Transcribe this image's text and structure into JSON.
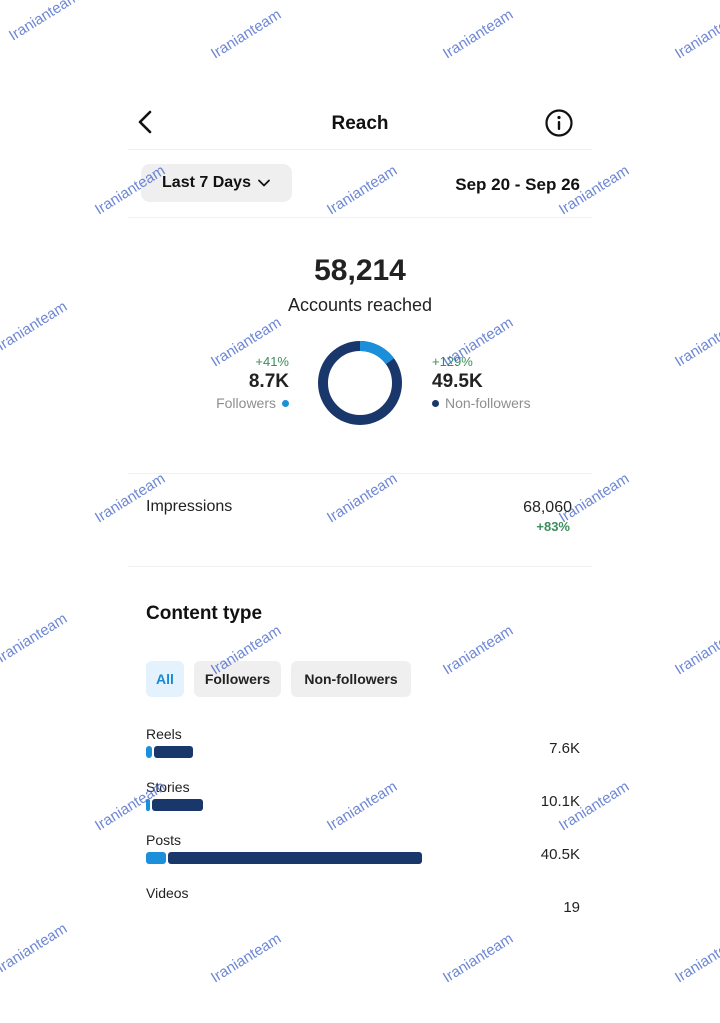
{
  "header": {
    "title": "Reach",
    "back_icon": "chevron-left-icon",
    "info_icon": "info-circle-icon"
  },
  "filters": {
    "range_label": "Last 7 Days",
    "date_range": "Sep 20 - Sep 26"
  },
  "reach": {
    "total": "58,214",
    "label": "Accounts reached",
    "followers": {
      "change": "+41%",
      "value": "8.7K",
      "label": "Followers",
      "fraction": 0.15,
      "color": "#1b8fd9"
    },
    "non_followers": {
      "change": "+129%",
      "value": "49.5K",
      "label": "Non-followers",
      "fraction": 0.85,
      "color": "#1a376b"
    }
  },
  "impressions": {
    "label": "Impressions",
    "value": "68,060",
    "change": "+83%"
  },
  "content_type": {
    "title": "Content type",
    "chips": [
      "All",
      "Followers",
      "Non-followers"
    ],
    "rows": [
      {
        "label": "Reels",
        "value": "7.6K",
        "followers_fraction": 0.02,
        "non_followers_fraction": 0.14
      },
      {
        "label": "Stories",
        "value": "10.1K",
        "followers_fraction": 0.015,
        "non_followers_fraction": 0.18
      },
      {
        "label": "Posts",
        "value": "40.5K",
        "followers_fraction": 0.07,
        "non_followers_fraction": 0.91
      },
      {
        "label": "Videos",
        "value": "19",
        "followers_fraction": 0,
        "non_followers_fraction": 0
      }
    ]
  },
  "watermark": "Iranianteam"
}
